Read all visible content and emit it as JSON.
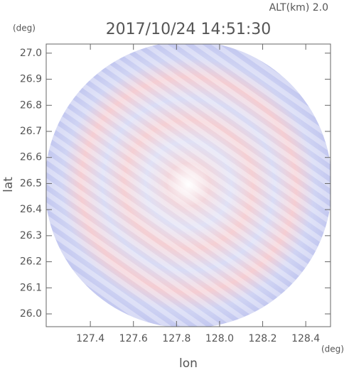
{
  "chart_data": {
    "type": "image",
    "title": "2017/10/24 14:51:30",
    "subtitle": "ALT(km) 2.0",
    "xlabel": "lon",
    "ylabel": "lat",
    "xunit": "(deg)",
    "yunit": "(deg)",
    "xlim": [
      127.195,
      128.515
    ],
    "ylim": [
      25.951,
      27.035
    ],
    "xticks": [
      127.4,
      127.6,
      127.8,
      {
        "value": 128.0,
        "label": "128.0"
      },
      128.2,
      128.4
    ],
    "yticks": [
      {
        "value": 26.0,
        "label": "26.0"
      },
      26.1,
      26.2,
      26.3,
      26.4,
      26.5,
      26.6,
      26.7,
      26.8,
      26.9,
      {
        "value": 27.0,
        "label": "27.0"
      }
    ],
    "grid": false
  }
}
